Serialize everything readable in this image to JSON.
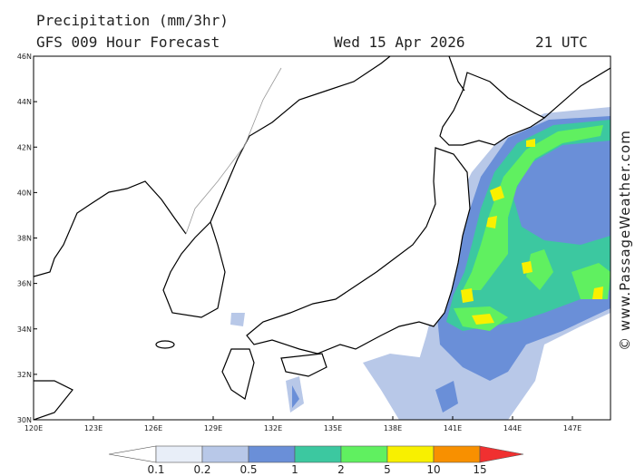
{
  "header": {
    "title": "Precipitation (mm/3hr)",
    "subtitle": "GFS 009 Hour Forecast",
    "date": "Wed 15 Apr 2026",
    "time": "21 UTC"
  },
  "map": {
    "lat_labels": [
      "46N",
      "44N",
      "42N",
      "40N",
      "38N",
      "36N",
      "34N",
      "32N",
      "30N"
    ],
    "lon_labels": [
      "120E",
      "123E",
      "126E",
      "129E",
      "132E",
      "135E",
      "138E",
      "141E",
      "144E",
      "147E"
    ]
  },
  "legend": {
    "labels": [
      "0.1",
      "0.2",
      "0.5",
      "1",
      "2",
      "5",
      "10",
      "15"
    ]
  },
  "credit": "© www.PassageWeather.com"
}
